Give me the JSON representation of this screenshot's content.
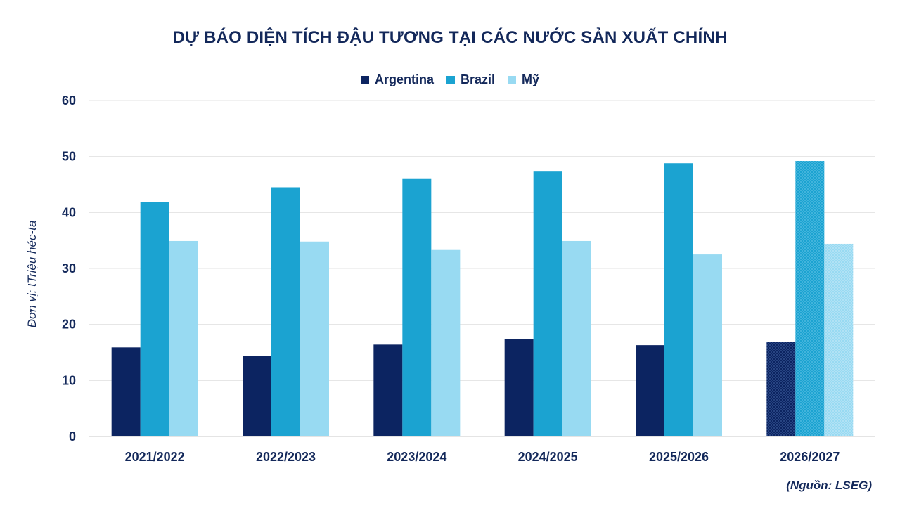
{
  "chart_data": {
    "type": "bar",
    "title": "DỰ BÁO DIỆN TÍCH ĐẬU TƯƠNG TẠI CÁC NƯỚC SẢN XUẤT CHÍNH",
    "ylabel": "Đơn vị: tTriệu héc-ta",
    "xlabel": "",
    "source": "(Nguồn: LSEG)",
    "categories": [
      "2021/2022",
      "2022/2023",
      "2023/2024",
      "2024/2025",
      "2025/2026",
      "2026/2027"
    ],
    "series": [
      {
        "name": "Argentina",
        "color": "#0c2461",
        "values": [
          15.9,
          14.4,
          16.4,
          17.4,
          16.3,
          16.9
        ]
      },
      {
        "name": "Brazil",
        "color": "#1ba3d1",
        "values": [
          41.8,
          44.5,
          46.1,
          47.3,
          48.8,
          49.2
        ]
      },
      {
        "name": "Mỹ",
        "color": "#98daf2",
        "values": [
          34.9,
          34.8,
          33.3,
          34.9,
          32.5,
          34.4
        ]
      }
    ],
    "ylim": [
      0,
      60
    ],
    "yticks": [
      0,
      10,
      20,
      30,
      40,
      50,
      60
    ],
    "grid": true,
    "legend": "top-center",
    "forecast_pattern_category": "2026/2027"
  }
}
